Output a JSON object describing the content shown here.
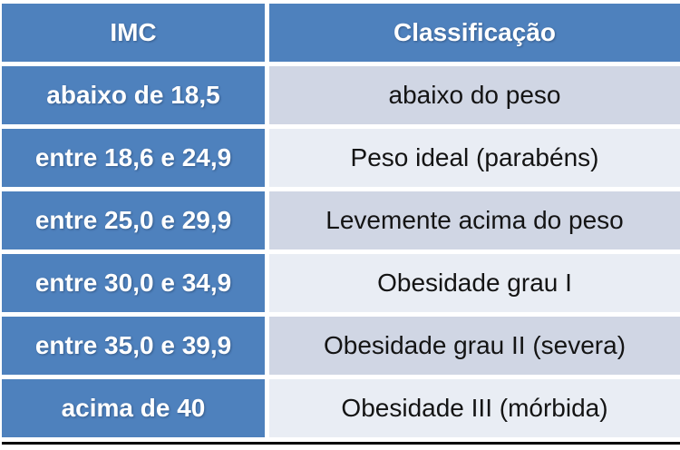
{
  "table": {
    "columns": {
      "0": "IMC",
      "1": "Classificação"
    },
    "rows": [
      {
        "imc": "abaixo de 18,5",
        "classificacao": "abaixo do peso"
      },
      {
        "imc": "entre 18,6 e 24,9",
        "classificacao": "Peso ideal (parabéns)"
      },
      {
        "imc": "entre 25,0 e 29,9",
        "classificacao": "Levemente acima do peso"
      },
      {
        "imc": "entre 30,0 e 34,9",
        "classificacao": "Obesidade grau I"
      },
      {
        "imc": "entre 35,0 e 39,9",
        "classificacao": "Obesidade grau II (severa)"
      },
      {
        "imc": "acima de 40",
        "classificacao": "Obesidade III (mórbida)"
      }
    ]
  },
  "colors": {
    "blue_bg": "#4e81bd",
    "band_dark": "#d0d6e4",
    "band_light": "#e9edf4",
    "header_text": "#ffffff",
    "body_text": "#141414",
    "row_gap": "#ffffff",
    "bottom_border": "#000000"
  },
  "chart_data": {
    "type": "table",
    "title": "",
    "columns": [
      "IMC",
      "Classificação"
    ],
    "rows": [
      [
        "abaixo de 18,5",
        "abaixo do peso"
      ],
      [
        "entre 18,6 e 24,9",
        "Peso ideal (parabéns)"
      ],
      [
        "entre 25,0 e 29,9",
        "Levemente acima do peso"
      ],
      [
        "entre 30,0 e 34,9",
        "Obesidade grau I"
      ],
      [
        "entre 35,0 e 39,9",
        "Obesidade grau II (severa)"
      ],
      [
        "acima de 40",
        "Obesidade III (mórbida)"
      ]
    ],
    "layout_hints": {
      "header_style": "blue background, white bold text",
      "imc_column_style": "blue background, white bold text",
      "banding": "alternating light-blue rows starting dark",
      "bottom_border": "black"
    }
  }
}
